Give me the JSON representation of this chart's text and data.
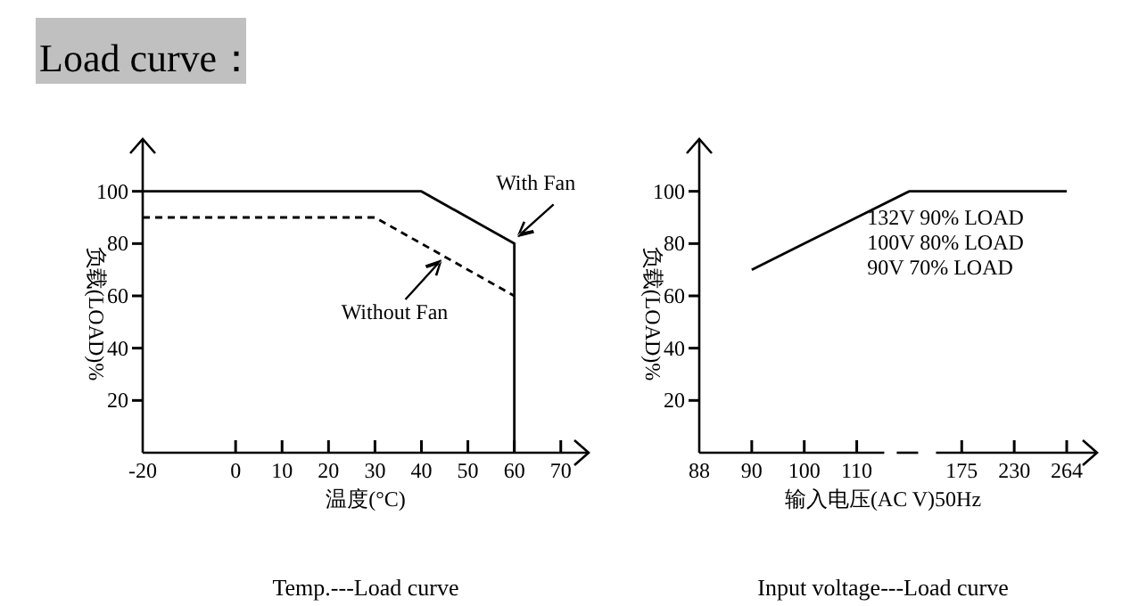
{
  "chart_data": [
    {
      "type": "other",
      "title": "Load curve："
    },
    {
      "type": "line",
      "title": "Temp.---Load curve",
      "xlabel": "温度(°C)",
      "ylabel": "负载(LOAD)%",
      "xlim": [
        -20,
        76
      ],
      "xticks": [
        -20,
        0,
        10,
        20,
        30,
        40,
        50,
        60,
        70
      ],
      "ylim": [
        0,
        120
      ],
      "yticks": [
        20,
        40,
        60,
        80,
        100
      ],
      "series": [
        {
          "name": "With Fan",
          "color": "#000000",
          "line_style": "solid",
          "x": [
            -20,
            40,
            60,
            60
          ],
          "values": [
            100,
            100,
            80,
            0
          ]
        },
        {
          "name": "Without Fan",
          "color": "#000000",
          "line_style": "dashed",
          "x": [
            -20,
            30,
            60
          ],
          "values": [
            90,
            90,
            60
          ]
        }
      ]
    },
    {
      "type": "line",
      "title": "Input voltage---Load curve",
      "xlabel": "输入电压(AC V)50Hz",
      "ylabel": "负载(LOAD)%",
      "ylim": [
        0,
        120
      ],
      "yticks": [
        20,
        40,
        60,
        80,
        100
      ],
      "categories": [
        "88",
        "90",
        "100",
        "110",
        null,
        "175",
        "230",
        "264"
      ],
      "values": [
        null,
        70,
        80,
        90,
        100,
        100,
        100,
        100
      ],
      "color": "#000000",
      "annotations": [
        "132V 90% LOAD",
        "100V 80% LOAD",
        "90V 70% LOAD"
      ]
    }
  ]
}
